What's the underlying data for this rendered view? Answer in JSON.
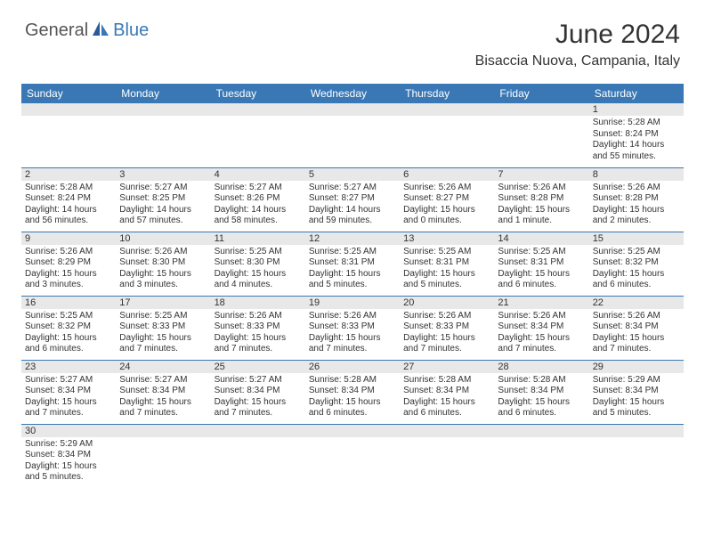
{
  "brand": {
    "general": "General",
    "blue": "Blue"
  },
  "title": "June 2024",
  "location": "Bisaccia Nuova, Campania, Italy",
  "colors": {
    "header_bg": "#3a78b5",
    "header_text": "#ffffff",
    "daynum_bg": "#e8e8e8",
    "border": "#3a78b5",
    "text": "#333333"
  },
  "weekdays": [
    "Sunday",
    "Monday",
    "Tuesday",
    "Wednesday",
    "Thursday",
    "Friday",
    "Saturday"
  ],
  "weeks": [
    [
      {
        "day": "",
        "sunrise": "",
        "sunset": "",
        "daylight": ""
      },
      {
        "day": "",
        "sunrise": "",
        "sunset": "",
        "daylight": ""
      },
      {
        "day": "",
        "sunrise": "",
        "sunset": "",
        "daylight": ""
      },
      {
        "day": "",
        "sunrise": "",
        "sunset": "",
        "daylight": ""
      },
      {
        "day": "",
        "sunrise": "",
        "sunset": "",
        "daylight": ""
      },
      {
        "day": "",
        "sunrise": "",
        "sunset": "",
        "daylight": ""
      },
      {
        "day": "1",
        "sunrise": "Sunrise: 5:28 AM",
        "sunset": "Sunset: 8:24 PM",
        "daylight": "Daylight: 14 hours and 55 minutes."
      }
    ],
    [
      {
        "day": "2",
        "sunrise": "Sunrise: 5:28 AM",
        "sunset": "Sunset: 8:24 PM",
        "daylight": "Daylight: 14 hours and 56 minutes."
      },
      {
        "day": "3",
        "sunrise": "Sunrise: 5:27 AM",
        "sunset": "Sunset: 8:25 PM",
        "daylight": "Daylight: 14 hours and 57 minutes."
      },
      {
        "day": "4",
        "sunrise": "Sunrise: 5:27 AM",
        "sunset": "Sunset: 8:26 PM",
        "daylight": "Daylight: 14 hours and 58 minutes."
      },
      {
        "day": "5",
        "sunrise": "Sunrise: 5:27 AM",
        "sunset": "Sunset: 8:27 PM",
        "daylight": "Daylight: 14 hours and 59 minutes."
      },
      {
        "day": "6",
        "sunrise": "Sunrise: 5:26 AM",
        "sunset": "Sunset: 8:27 PM",
        "daylight": "Daylight: 15 hours and 0 minutes."
      },
      {
        "day": "7",
        "sunrise": "Sunrise: 5:26 AM",
        "sunset": "Sunset: 8:28 PM",
        "daylight": "Daylight: 15 hours and 1 minute."
      },
      {
        "day": "8",
        "sunrise": "Sunrise: 5:26 AM",
        "sunset": "Sunset: 8:28 PM",
        "daylight": "Daylight: 15 hours and 2 minutes."
      }
    ],
    [
      {
        "day": "9",
        "sunrise": "Sunrise: 5:26 AM",
        "sunset": "Sunset: 8:29 PM",
        "daylight": "Daylight: 15 hours and 3 minutes."
      },
      {
        "day": "10",
        "sunrise": "Sunrise: 5:26 AM",
        "sunset": "Sunset: 8:30 PM",
        "daylight": "Daylight: 15 hours and 3 minutes."
      },
      {
        "day": "11",
        "sunrise": "Sunrise: 5:25 AM",
        "sunset": "Sunset: 8:30 PM",
        "daylight": "Daylight: 15 hours and 4 minutes."
      },
      {
        "day": "12",
        "sunrise": "Sunrise: 5:25 AM",
        "sunset": "Sunset: 8:31 PM",
        "daylight": "Daylight: 15 hours and 5 minutes."
      },
      {
        "day": "13",
        "sunrise": "Sunrise: 5:25 AM",
        "sunset": "Sunset: 8:31 PM",
        "daylight": "Daylight: 15 hours and 5 minutes."
      },
      {
        "day": "14",
        "sunrise": "Sunrise: 5:25 AM",
        "sunset": "Sunset: 8:31 PM",
        "daylight": "Daylight: 15 hours and 6 minutes."
      },
      {
        "day": "15",
        "sunrise": "Sunrise: 5:25 AM",
        "sunset": "Sunset: 8:32 PM",
        "daylight": "Daylight: 15 hours and 6 minutes."
      }
    ],
    [
      {
        "day": "16",
        "sunrise": "Sunrise: 5:25 AM",
        "sunset": "Sunset: 8:32 PM",
        "daylight": "Daylight: 15 hours and 6 minutes."
      },
      {
        "day": "17",
        "sunrise": "Sunrise: 5:25 AM",
        "sunset": "Sunset: 8:33 PM",
        "daylight": "Daylight: 15 hours and 7 minutes."
      },
      {
        "day": "18",
        "sunrise": "Sunrise: 5:26 AM",
        "sunset": "Sunset: 8:33 PM",
        "daylight": "Daylight: 15 hours and 7 minutes."
      },
      {
        "day": "19",
        "sunrise": "Sunrise: 5:26 AM",
        "sunset": "Sunset: 8:33 PM",
        "daylight": "Daylight: 15 hours and 7 minutes."
      },
      {
        "day": "20",
        "sunrise": "Sunrise: 5:26 AM",
        "sunset": "Sunset: 8:33 PM",
        "daylight": "Daylight: 15 hours and 7 minutes."
      },
      {
        "day": "21",
        "sunrise": "Sunrise: 5:26 AM",
        "sunset": "Sunset: 8:34 PM",
        "daylight": "Daylight: 15 hours and 7 minutes."
      },
      {
        "day": "22",
        "sunrise": "Sunrise: 5:26 AM",
        "sunset": "Sunset: 8:34 PM",
        "daylight": "Daylight: 15 hours and 7 minutes."
      }
    ],
    [
      {
        "day": "23",
        "sunrise": "Sunrise: 5:27 AM",
        "sunset": "Sunset: 8:34 PM",
        "daylight": "Daylight: 15 hours and 7 minutes."
      },
      {
        "day": "24",
        "sunrise": "Sunrise: 5:27 AM",
        "sunset": "Sunset: 8:34 PM",
        "daylight": "Daylight: 15 hours and 7 minutes."
      },
      {
        "day": "25",
        "sunrise": "Sunrise: 5:27 AM",
        "sunset": "Sunset: 8:34 PM",
        "daylight": "Daylight: 15 hours and 7 minutes."
      },
      {
        "day": "26",
        "sunrise": "Sunrise: 5:28 AM",
        "sunset": "Sunset: 8:34 PM",
        "daylight": "Daylight: 15 hours and 6 minutes."
      },
      {
        "day": "27",
        "sunrise": "Sunrise: 5:28 AM",
        "sunset": "Sunset: 8:34 PM",
        "daylight": "Daylight: 15 hours and 6 minutes."
      },
      {
        "day": "28",
        "sunrise": "Sunrise: 5:28 AM",
        "sunset": "Sunset: 8:34 PM",
        "daylight": "Daylight: 15 hours and 6 minutes."
      },
      {
        "day": "29",
        "sunrise": "Sunrise: 5:29 AM",
        "sunset": "Sunset: 8:34 PM",
        "daylight": "Daylight: 15 hours and 5 minutes."
      }
    ],
    [
      {
        "day": "30",
        "sunrise": "Sunrise: 5:29 AM",
        "sunset": "Sunset: 8:34 PM",
        "daylight": "Daylight: 15 hours and 5 minutes."
      },
      {
        "day": "",
        "sunrise": "",
        "sunset": "",
        "daylight": ""
      },
      {
        "day": "",
        "sunrise": "",
        "sunset": "",
        "daylight": ""
      },
      {
        "day": "",
        "sunrise": "",
        "sunset": "",
        "daylight": ""
      },
      {
        "day": "",
        "sunrise": "",
        "sunset": "",
        "daylight": ""
      },
      {
        "day": "",
        "sunrise": "",
        "sunset": "",
        "daylight": ""
      },
      {
        "day": "",
        "sunrise": "",
        "sunset": "",
        "daylight": ""
      }
    ]
  ]
}
